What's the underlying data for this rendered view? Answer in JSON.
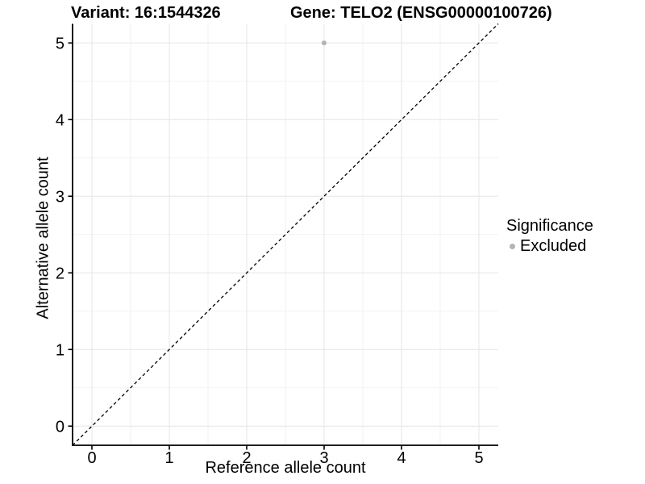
{
  "chart_data": {
    "type": "scatter",
    "titles": {
      "variant": "Variant: 16:1544326",
      "gene": "Gene: TELO2 (ENSG00000100726)"
    },
    "xlabel": "Reference allele count",
    "ylabel": "Alternative allele count",
    "xlim": [
      -0.25,
      5.25
    ],
    "ylim": [
      -0.25,
      5.25
    ],
    "x_ticks": [
      0,
      1,
      2,
      3,
      4,
      5
    ],
    "y_ticks": [
      0,
      1,
      2,
      3,
      4,
      5
    ],
    "x_minor": [
      0.5,
      1.5,
      2.5,
      3.5,
      4.5
    ],
    "y_minor": [
      0.5,
      1.5,
      2.5,
      3.5,
      4.5
    ],
    "grid": "major+minor",
    "legend_position": "right",
    "legend": {
      "title": "Significance",
      "items": [
        {
          "label": "Excluded",
          "color": "#b3b3b3"
        }
      ]
    },
    "series": [
      {
        "name": "Excluded",
        "color": "#b3b3b3",
        "points": [
          {
            "x": 3,
            "y": 5
          }
        ]
      }
    ],
    "reference_line": {
      "type": "identity y=x",
      "style": "dashed",
      "color": "#000000",
      "from": [
        -0.25,
        -0.25
      ],
      "to": [
        5.25,
        5.25
      ]
    }
  },
  "colors": {
    "background": "#ffffff",
    "grid_major": "#e6e6e6",
    "grid_minor": "#f2f2f2",
    "axis": "#000000",
    "text": "#000000",
    "point": "#b3b3b3"
  }
}
